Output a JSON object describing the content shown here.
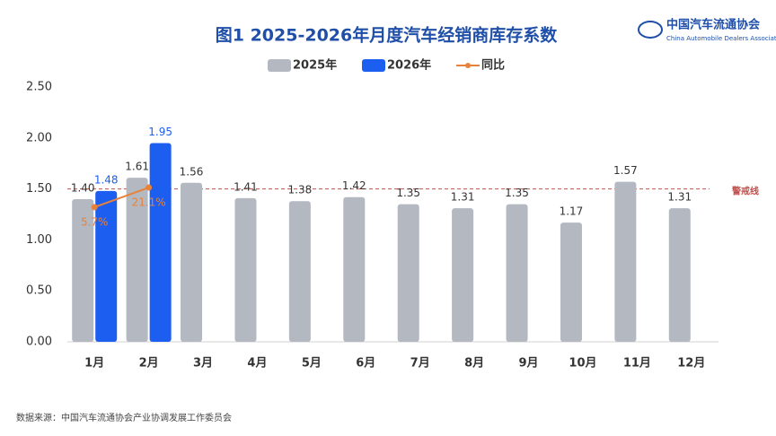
{
  "chart_data": {
    "type": "bar-line",
    "title": "图1  2025-2026年月度汽车经销商库存系数",
    "source": "数据来源：中国汽车流通协会产业协调发展工作委员会",
    "logo": {
      "name": "中国汽车流通协会",
      "subtitle": "China Automobile Dealers Association"
    },
    "categories": [
      "1月",
      "2月",
      "3月",
      "4月",
      "5月",
      "6月",
      "7月",
      "8月",
      "9月",
      "10月",
      "11月",
      "12月"
    ],
    "series": [
      {
        "name": "2025年",
        "type": "bar",
        "color": "#b3b8c1",
        "values": [
          1.4,
          1.61,
          1.56,
          1.41,
          1.38,
          1.42,
          1.35,
          1.31,
          1.35,
          1.17,
          1.57,
          1.31
        ],
        "value_labels": [
          "1.40",
          "1.61",
          "1.56",
          "1.41",
          "1.38",
          "1.42",
          "1.35",
          "1.31",
          "1.35",
          "1.17",
          "1.57",
          "1.31"
        ]
      },
      {
        "name": "2026年",
        "type": "bar",
        "color": "#1b5ef0",
        "values": [
          1.48,
          1.95,
          null,
          null,
          null,
          null,
          null,
          null,
          null,
          null,
          null,
          null
        ],
        "value_labels": [
          "1.48",
          "1.95",
          null,
          null,
          null,
          null,
          null,
          null,
          null,
          null,
          null,
          null
        ]
      },
      {
        "name": "同比",
        "type": "line",
        "axis": "y2",
        "color": "#e8823a",
        "values": [
          5.7,
          21.1,
          null,
          null,
          null,
          null,
          null,
          null,
          null,
          null,
          null,
          null
        ],
        "value_labels": [
          "5.7%",
          "21.1%",
          null,
          null,
          null,
          null,
          null,
          null,
          null,
          null,
          null,
          null
        ]
      }
    ],
    "ylim": [
      0,
      2.5
    ],
    "yticks": [
      {
        "value": 0,
        "label": "0.00"
      },
      {
        "value": 0.5,
        "label": "0.50"
      },
      {
        "value": 1,
        "label": "1.00"
      },
      {
        "value": 1.5,
        "label": "1.50"
      },
      {
        "value": 2,
        "label": "2.00"
      },
      {
        "value": 2.5,
        "label": "2.50"
      }
    ],
    "y2lim": [
      -100,
      100
    ],
    "reference_line": {
      "value": 1.5,
      "label": "警戒线",
      "color": "#c0504d"
    },
    "grid": false,
    "legend": "top"
  }
}
